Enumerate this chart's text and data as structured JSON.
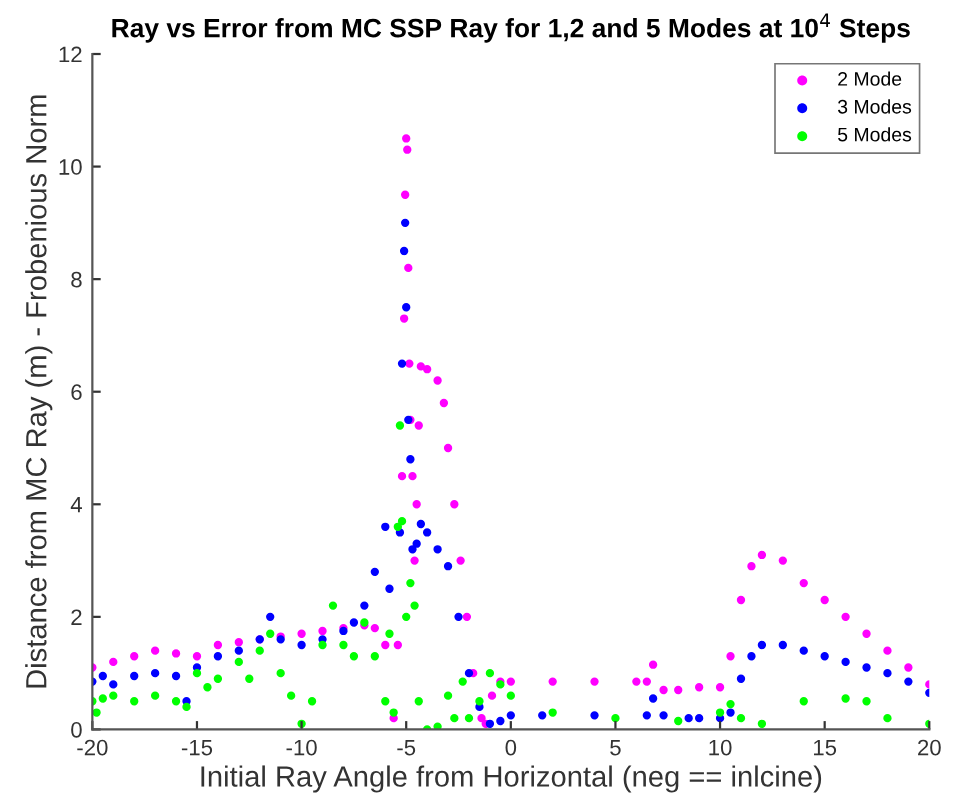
{
  "chart_data": {
    "type": "scatter",
    "title": "Ray vs Error from MC SSP Ray for 1,2 and 5 Modes at 10$^{4}$ Steps",
    "xlabel": "Initial Ray Angle from Horizontal (neg == inlcine)",
    "ylabel": "Distance from MC Ray (m) - Frobenious Norm",
    "xlim": [
      -20,
      20
    ],
    "ylim": [
      0,
      12
    ],
    "xticks": [
      -20,
      -15,
      -10,
      -5,
      0,
      5,
      10,
      15,
      20
    ],
    "yticks": [
      0,
      2,
      4,
      6,
      8,
      10,
      12
    ],
    "grid": false,
    "legend": "top right",
    "marker": "circle",
    "series": [
      {
        "name": "2 Mode",
        "color": "#ff00ff",
        "x": [
          -20,
          -19,
          -18,
          -17,
          -16,
          -15,
          -14,
          -13,
          -12,
          -11,
          -10,
          -9,
          -8,
          -7,
          -6.5,
          -6,
          -5.6,
          -5.4,
          -5.2,
          -5.1,
          -5.05,
          -5.0,
          -4.95,
          -4.9,
          -4.85,
          -4.8,
          -4.7,
          -4.6,
          -4.5,
          -4.4,
          -4.3,
          -4,
          -3.5,
          -3.2,
          -3,
          -2.7,
          -2.4,
          -2.1,
          -1.8,
          -1.4,
          -1.2,
          -0.9,
          -0.5,
          0,
          2,
          4,
          6,
          6.5,
          6.8,
          7.3,
          8,
          9,
          10,
          10.5,
          11,
          11.5,
          12,
          13,
          14,
          15,
          16,
          17,
          18,
          19,
          20
        ],
        "values": [
          1.1,
          1.2,
          1.3,
          1.4,
          1.35,
          1.3,
          1.5,
          1.55,
          1.6,
          1.65,
          1.7,
          1.75,
          1.8,
          1.85,
          1.8,
          1.5,
          0.2,
          1.5,
          4.5,
          7.3,
          9.5,
          10.5,
          10.3,
          8.2,
          6.5,
          5.5,
          4.5,
          3.0,
          4.0,
          5.4,
          6.45,
          6.4,
          6.2,
          5.8,
          5.0,
          4.0,
          3.0,
          2.0,
          1.0,
          0.2,
          0.1,
          0.6,
          0.85,
          0.85,
          0.85,
          0.85,
          0.85,
          0.85,
          1.15,
          0.7,
          0.7,
          0.75,
          0.75,
          1.3,
          2.3,
          2.9,
          3.1,
          3.0,
          2.6,
          2.3,
          2.0,
          1.7,
          1.4,
          1.1,
          0.8
        ]
      },
      {
        "name": "3 Modes",
        "color": "#0000ff",
        "x": [
          -20,
          -19.5,
          -19,
          -18,
          -17,
          -16,
          -15.5,
          -15,
          -14,
          -13,
          -12,
          -11.5,
          -11,
          -10,
          -9,
          -8,
          -7.5,
          -7,
          -6.5,
          -6,
          -5.8,
          -5.3,
          -5.2,
          -5.1,
          -5.05,
          -5.0,
          -4.9,
          -4.8,
          -4.7,
          -4.5,
          -4.3,
          -4,
          -3.5,
          -3,
          -2.5,
          -2,
          -1.5,
          -1,
          -0.5,
          0,
          1.5,
          4,
          6.5,
          6.8,
          7.3,
          8.5,
          9,
          10,
          10.5,
          11,
          11.5,
          12,
          13,
          14,
          15,
          16,
          17,
          18,
          19,
          20
        ],
        "values": [
          0.85,
          0.95,
          0.8,
          0.95,
          1.0,
          0.95,
          0.5,
          1.1,
          1.3,
          1.4,
          1.6,
          2.0,
          1.6,
          1.5,
          1.6,
          1.75,
          1.9,
          2.2,
          2.8,
          3.6,
          2.5,
          3.5,
          6.5,
          8.5,
          9.0,
          7.5,
          5.5,
          4.8,
          3.2,
          3.3,
          3.65,
          3.5,
          3.2,
          2.9,
          2.0,
          1.0,
          0.4,
          0.1,
          0.15,
          0.25,
          0.25,
          0.25,
          0.25,
          0.55,
          0.25,
          0.2,
          0.2,
          0.2,
          0.3,
          0.9,
          1.3,
          1.5,
          1.5,
          1.4,
          1.3,
          1.2,
          1.1,
          1.0,
          0.85,
          0.65
        ]
      },
      {
        "name": "5 Modes",
        "color": "#00ff00",
        "x": [
          -20,
          -19.8,
          -19.5,
          -19,
          -18,
          -17,
          -16,
          -15.5,
          -15,
          -14.5,
          -14,
          -13,
          -12.5,
          -12,
          -11.5,
          -11,
          -10.5,
          -10,
          -9.5,
          -9,
          -8.5,
          -8,
          -7.5,
          -7,
          -6.5,
          -6,
          -5.8,
          -5.6,
          -5.4,
          -5.3,
          -5.2,
          -5.0,
          -4.8,
          -4.6,
          -4.4,
          -4.0,
          -3.5,
          -3.0,
          -2.7,
          -2.3,
          -2,
          -1.5,
          -1.0,
          -0.5,
          0,
          2,
          5,
          8,
          10,
          10.5,
          11,
          12,
          14,
          16,
          17,
          18,
          20
        ],
        "values": [
          0.5,
          0.3,
          0.55,
          0.6,
          0.5,
          0.6,
          0.5,
          0.4,
          1.0,
          0.75,
          0.9,
          1.2,
          0.9,
          1.4,
          1.7,
          1.0,
          0.6,
          0.1,
          0.5,
          1.5,
          2.2,
          1.5,
          1.3,
          1.9,
          1.3,
          0.5,
          1.7,
          0.3,
          3.6,
          5.4,
          3.7,
          2.0,
          2.6,
          2.2,
          0.5,
          0.0,
          0.05,
          0.6,
          0.2,
          0.85,
          0.2,
          0.5,
          1.0,
          0.8,
          0.6,
          0.3,
          0.2,
          0.15,
          0.3,
          0.45,
          0.2,
          0.1,
          0.5,
          0.55,
          0.5,
          0.2,
          0.1
        ]
      }
    ]
  }
}
